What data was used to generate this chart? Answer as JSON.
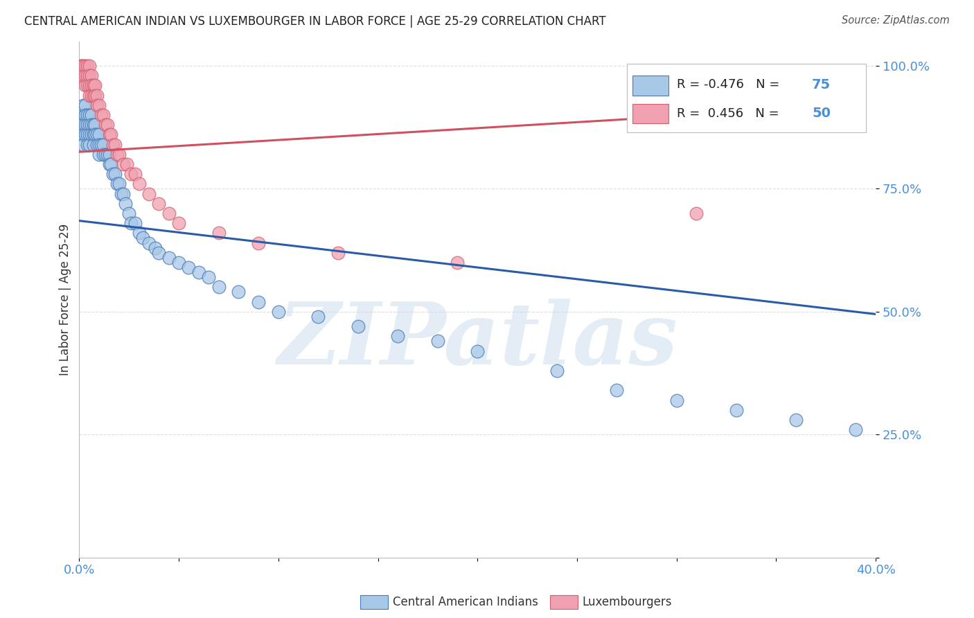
{
  "title": "CENTRAL AMERICAN INDIAN VS LUXEMBOURGER IN LABOR FORCE | AGE 25-29 CORRELATION CHART",
  "source": "Source: ZipAtlas.com",
  "ylabel": "In Labor Force | Age 25-29",
  "xlim": [
    0.0,
    0.4
  ],
  "ylim": [
    0.0,
    1.05
  ],
  "x_ticks": [
    0.0,
    0.05,
    0.1,
    0.15,
    0.2,
    0.25,
    0.3,
    0.35,
    0.4
  ],
  "y_ticks": [
    0.0,
    0.25,
    0.5,
    0.75,
    1.0
  ],
  "blue_R": -0.476,
  "blue_N": 75,
  "pink_R": 0.456,
  "pink_N": 50,
  "blue_color": "#A8C8E8",
  "pink_color": "#F0A0B0",
  "blue_edge_color": "#4A7AB5",
  "pink_edge_color": "#D06070",
  "blue_line_color": "#2B5BA8",
  "pink_line_color": "#D05060",
  "watermark": "ZIPatlas",
  "blue_line_x0": 0.0,
  "blue_line_y0": 0.685,
  "blue_line_x1": 0.4,
  "blue_line_y1": 0.495,
  "pink_line_x0": 0.0,
  "pink_line_y0": 0.825,
  "pink_line_x1": 0.31,
  "pink_line_y1": 0.9,
  "blue_pts_x": [
    0.001,
    0.001,
    0.001,
    0.002,
    0.002,
    0.002,
    0.002,
    0.003,
    0.003,
    0.003,
    0.003,
    0.004,
    0.004,
    0.004,
    0.004,
    0.005,
    0.005,
    0.005,
    0.005,
    0.006,
    0.006,
    0.006,
    0.007,
    0.007,
    0.007,
    0.008,
    0.008,
    0.009,
    0.009,
    0.01,
    0.01,
    0.01,
    0.011,
    0.012,
    0.012,
    0.013,
    0.014,
    0.015,
    0.015,
    0.016,
    0.017,
    0.018,
    0.019,
    0.02,
    0.021,
    0.022,
    0.023,
    0.025,
    0.026,
    0.028,
    0.03,
    0.032,
    0.035,
    0.038,
    0.04,
    0.045,
    0.05,
    0.055,
    0.06,
    0.065,
    0.07,
    0.08,
    0.09,
    0.1,
    0.12,
    0.14,
    0.16,
    0.18,
    0.2,
    0.24,
    0.27,
    0.3,
    0.33,
    0.36,
    0.39
  ],
  "blue_pts_y": [
    0.9,
    0.88,
    0.86,
    0.92,
    0.88,
    0.86,
    0.84,
    0.92,
    0.9,
    0.88,
    0.86,
    0.9,
    0.88,
    0.86,
    0.84,
    0.9,
    0.88,
    0.86,
    0.84,
    0.9,
    0.88,
    0.86,
    0.88,
    0.86,
    0.84,
    0.88,
    0.86,
    0.86,
    0.84,
    0.86,
    0.84,
    0.82,
    0.84,
    0.84,
    0.82,
    0.82,
    0.82,
    0.82,
    0.8,
    0.8,
    0.78,
    0.78,
    0.76,
    0.76,
    0.74,
    0.74,
    0.72,
    0.7,
    0.68,
    0.68,
    0.66,
    0.65,
    0.64,
    0.63,
    0.62,
    0.61,
    0.6,
    0.59,
    0.58,
    0.57,
    0.55,
    0.54,
    0.52,
    0.5,
    0.49,
    0.47,
    0.45,
    0.44,
    0.42,
    0.38,
    0.34,
    0.32,
    0.3,
    0.28,
    0.26
  ],
  "pink_pts_x": [
    0.001,
    0.001,
    0.001,
    0.002,
    0.002,
    0.002,
    0.003,
    0.003,
    0.003,
    0.004,
    0.004,
    0.004,
    0.005,
    0.005,
    0.005,
    0.005,
    0.006,
    0.006,
    0.006,
    0.007,
    0.007,
    0.008,
    0.008,
    0.009,
    0.009,
    0.01,
    0.011,
    0.012,
    0.013,
    0.014,
    0.015,
    0.016,
    0.017,
    0.018,
    0.019,
    0.02,
    0.022,
    0.024,
    0.026,
    0.028,
    0.03,
    0.035,
    0.04,
    0.045,
    0.05,
    0.07,
    0.09,
    0.13,
    0.19,
    0.31
  ],
  "pink_pts_y": [
    1.0,
    1.0,
    0.98,
    1.0,
    1.0,
    0.98,
    1.0,
    0.98,
    0.96,
    1.0,
    0.98,
    0.96,
    1.0,
    0.98,
    0.96,
    0.94,
    0.98,
    0.96,
    0.94,
    0.96,
    0.94,
    0.96,
    0.94,
    0.94,
    0.92,
    0.92,
    0.9,
    0.9,
    0.88,
    0.88,
    0.86,
    0.86,
    0.84,
    0.84,
    0.82,
    0.82,
    0.8,
    0.8,
    0.78,
    0.78,
    0.76,
    0.74,
    0.72,
    0.7,
    0.68,
    0.66,
    0.64,
    0.62,
    0.6,
    0.7
  ]
}
